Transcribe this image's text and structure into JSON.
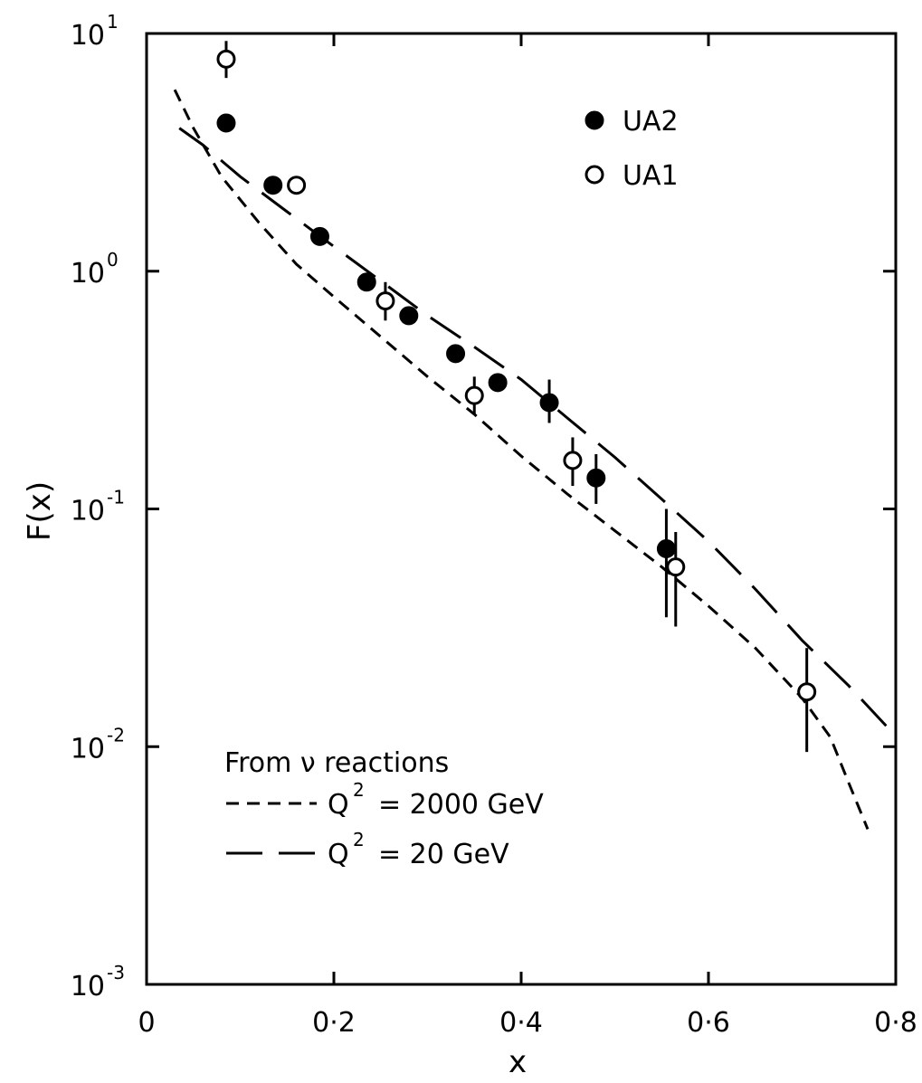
{
  "chart_data": {
    "type": "scatter",
    "xlabel": "x",
    "ylabel": "F(x)",
    "xlim": [
      0,
      0.8
    ],
    "ylim": [
      0.001,
      10
    ],
    "yscale": "log",
    "x_ticks": [
      0,
      0.2,
      0.4,
      0.6,
      0.8
    ],
    "x_tick_labels": [
      "0",
      "0·2",
      "0·4",
      "0·6",
      "0·8"
    ],
    "y_ticks": [
      10,
      1,
      0.1,
      0.01,
      0.001
    ],
    "y_tick_labels": [
      {
        "base": "10",
        "exp": "1"
      },
      {
        "base": "10",
        "exp": "0"
      },
      {
        "base": "10",
        "exp": "-1"
      },
      {
        "base": "10",
        "exp": "-2"
      },
      {
        "base": "10",
        "exp": "-3"
      }
    ],
    "grid": false,
    "legend_position": "top-right",
    "series": [
      {
        "name": "UA2",
        "marker": "filled-circle",
        "points": [
          {
            "x": 0.085,
            "y": 4.2
          },
          {
            "x": 0.135,
            "y": 2.3
          },
          {
            "x": 0.185,
            "y": 1.4
          },
          {
            "x": 0.235,
            "y": 0.9
          },
          {
            "x": 0.28,
            "y": 0.65
          },
          {
            "x": 0.33,
            "y": 0.45
          },
          {
            "x": 0.375,
            "y": 0.34
          },
          {
            "x": 0.43,
            "y": 0.28,
            "err_low": 0.23,
            "err_high": 0.35
          },
          {
            "x": 0.48,
            "y": 0.135,
            "err_low": 0.105,
            "err_high": 0.17
          },
          {
            "x": 0.555,
            "y": 0.068,
            "err_low": 0.035,
            "err_high": 0.1
          }
        ]
      },
      {
        "name": "UA1",
        "marker": "open-circle",
        "points": [
          {
            "x": 0.085,
            "y": 7.8,
            "err_low": 6.5,
            "err_high": 9.3
          },
          {
            "x": 0.16,
            "y": 2.3
          },
          {
            "x": 0.255,
            "y": 0.75,
            "err_low": 0.62,
            "err_high": 0.9
          },
          {
            "x": 0.35,
            "y": 0.3,
            "err_low": 0.25,
            "err_high": 0.36
          },
          {
            "x": 0.455,
            "y": 0.16,
            "err_low": 0.125,
            "err_high": 0.2
          },
          {
            "x": 0.565,
            "y": 0.057,
            "err_low": 0.032,
            "err_high": 0.08
          },
          {
            "x": 0.705,
            "y": 0.017,
            "err_low": 0.0095,
            "err_high": 0.026
          }
        ]
      },
      {
        "name": "Q² = 2000 GeV",
        "style": "short-dash",
        "points": [
          {
            "x": 0.03,
            "y": 5.8
          },
          {
            "x": 0.05,
            "y": 4.0
          },
          {
            "x": 0.08,
            "y": 2.5
          },
          {
            "x": 0.12,
            "y": 1.6
          },
          {
            "x": 0.16,
            "y": 1.07
          },
          {
            "x": 0.2,
            "y": 0.78
          },
          {
            "x": 0.25,
            "y": 0.53
          },
          {
            "x": 0.3,
            "y": 0.36
          },
          {
            "x": 0.35,
            "y": 0.25
          },
          {
            "x": 0.4,
            "y": 0.167
          },
          {
            "x": 0.45,
            "y": 0.115
          },
          {
            "x": 0.5,
            "y": 0.081
          },
          {
            "x": 0.55,
            "y": 0.057
          },
          {
            "x": 0.6,
            "y": 0.039
          },
          {
            "x": 0.65,
            "y": 0.026
          },
          {
            "x": 0.7,
            "y": 0.016
          },
          {
            "x": 0.73,
            "y": 0.011
          },
          {
            "x": 0.75,
            "y": 0.007
          },
          {
            "x": 0.77,
            "y": 0.0045
          }
        ]
      },
      {
        "name": "Q² = 20 GeV",
        "style": "long-dash",
        "points": [
          {
            "x": 0.035,
            "y": 4.0
          },
          {
            "x": 0.06,
            "y": 3.4
          },
          {
            "x": 0.1,
            "y": 2.5
          },
          {
            "x": 0.15,
            "y": 1.78
          },
          {
            "x": 0.2,
            "y": 1.27
          },
          {
            "x": 0.25,
            "y": 0.91
          },
          {
            "x": 0.3,
            "y": 0.65
          },
          {
            "x": 0.35,
            "y": 0.48
          },
          {
            "x": 0.4,
            "y": 0.35
          },
          {
            "x": 0.45,
            "y": 0.24
          },
          {
            "x": 0.5,
            "y": 0.165
          },
          {
            "x": 0.55,
            "y": 0.11
          },
          {
            "x": 0.6,
            "y": 0.073
          },
          {
            "x": 0.65,
            "y": 0.046
          },
          {
            "x": 0.7,
            "y": 0.028
          },
          {
            "x": 0.75,
            "y": 0.018
          },
          {
            "x": 0.79,
            "y": 0.0122
          }
        ]
      }
    ],
    "legend": {
      "markers": [
        {
          "label": "UA2",
          "marker": "filled-circle"
        },
        {
          "label": "UA1",
          "marker": "open-circle"
        }
      ],
      "lines_title": "From ν reactions",
      "lines": [
        {
          "style": "short-dash",
          "prefix": "Q",
          "sup": "2",
          "value": "= 2000 GeV"
        },
        {
          "style": "long-dash",
          "prefix": "Q",
          "sup": "2",
          "value": "= 20 GeV"
        }
      ]
    }
  }
}
